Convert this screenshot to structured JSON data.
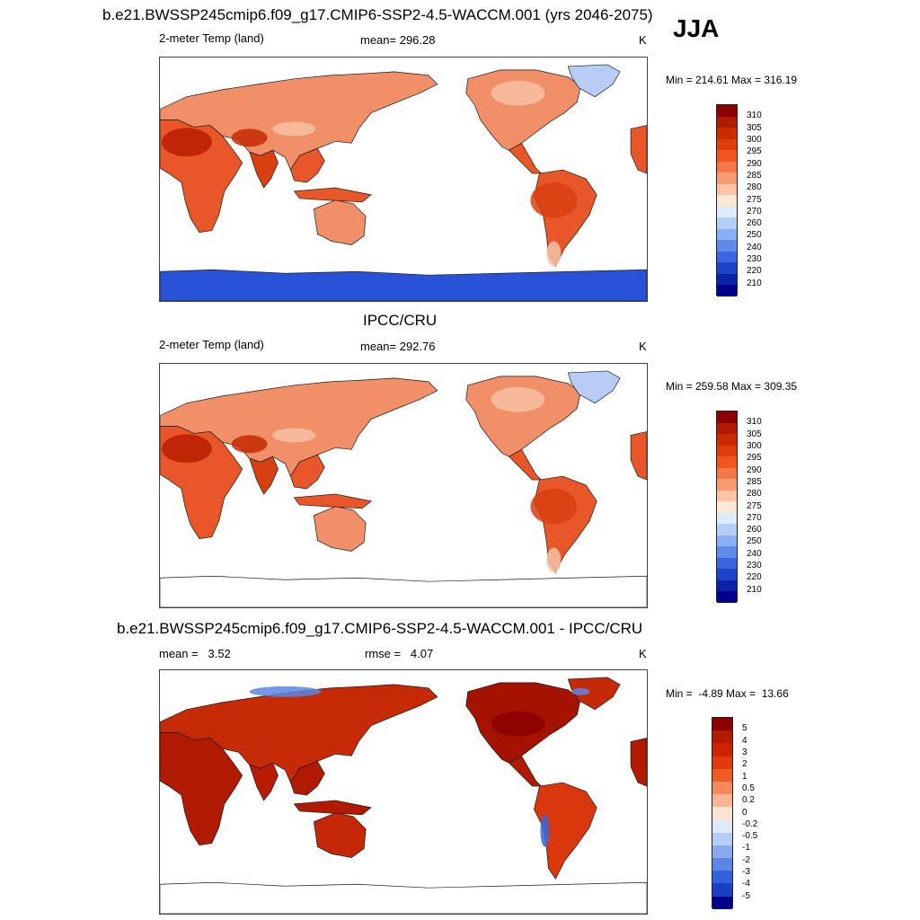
{
  "figure": {
    "season": "JJA",
    "panels": [
      {
        "title": "b.e21.BWSSP245cmip6.f09_g17.CMIP6-SSP2-4.5-WACCM.001 (yrs 2046-2075)",
        "left_label": "2-meter Temp (land)",
        "center_label": "mean= 296.28",
        "unit": "K",
        "minmax": "Min = 214.61 Max = 316.19",
        "colorbar_labels": [
          "310",
          "305",
          "300",
          "295",
          "290",
          "285",
          "280",
          "275",
          "270",
          "260",
          "250",
          "240",
          "230",
          "220",
          "210"
        ],
        "antarctica": true
      },
      {
        "title": "IPCC/CRU",
        "left_label": "2-meter Temp (land)",
        "center_label": "mean= 292.76",
        "unit": "K",
        "minmax": "Min = 259.58 Max = 309.35",
        "colorbar_labels": [
          "310",
          "305",
          "300",
          "295",
          "290",
          "285",
          "280",
          "275",
          "270",
          "260",
          "250",
          "240",
          "230",
          "220",
          "210"
        ],
        "antarctica": false
      },
      {
        "title": "b.e21.BWSSP245cmip6.f09_g17.CMIP6-SSP2-4.5-WACCM.001 - IPCC/CRU",
        "left_label": "mean =   3.52",
        "center_label": "rmse =   4.07",
        "unit": "K",
        "minmax": "Min =  -4.89 Max =  13.66",
        "colorbar_labels": [
          "5",
          "4",
          "3",
          "2",
          "1",
          "0.5",
          "0.2",
          "0",
          "-0.2",
          "-0.5",
          "-1",
          "-2",
          "-3",
          "-4",
          "-5"
        ],
        "antarctica": false
      }
    ],
    "colors": {
      "warm_scale": [
        "#8b0000",
        "#b01a00",
        "#cc2a00",
        "#e03d0e",
        "#f0561e",
        "#f47845",
        "#f89b70",
        "#fbc4a6",
        "#fde8d6",
        "#dcecfb",
        "#b4cff7",
        "#8aaff2",
        "#5f8ce9",
        "#3a66df",
        "#1c44c8",
        "#0a22a6",
        "#00008b"
      ],
      "diff_scale": [
        "#8b0000",
        "#b21a00",
        "#cc2200",
        "#e03a0e",
        "#ef5a26",
        "#f48a5c",
        "#f8b493",
        "#fde4d2",
        "#dde9fb",
        "#b6cdf6",
        "#8aaaf0",
        "#5b86e6",
        "#3462dc",
        "#1a3fc4",
        "#00008b"
      ],
      "land_warm": "#e8572a",
      "land_mid": "#f19068",
      "land_cool": "#f7c2a5",
      "land_hot": "#b01a00",
      "ice_blue": "#2a52d8"
    }
  }
}
